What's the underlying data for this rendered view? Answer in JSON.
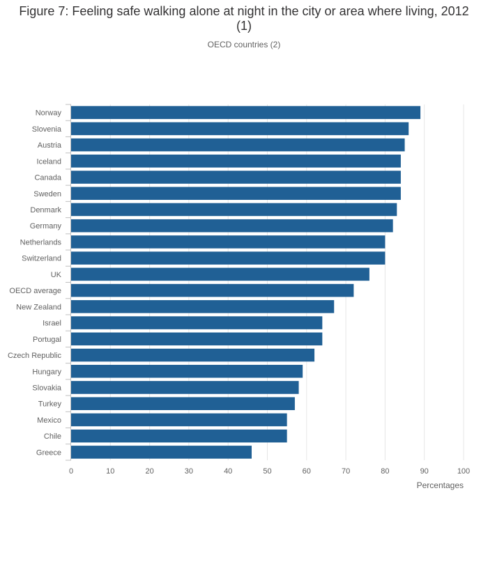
{
  "chart_data": {
    "type": "bar",
    "orientation": "horizontal",
    "title": "Figure 7: Feeling safe walking alone at night in the city or area where living, 2012 (1)",
    "subtitle": "OECD countries (2)",
    "xlabel": "Percentages",
    "ylabel": "",
    "xlim": [
      0,
      100
    ],
    "x_ticks": [
      0,
      10,
      20,
      30,
      40,
      50,
      60,
      70,
      80,
      90,
      100
    ],
    "grid": true,
    "bar_color": "#206095",
    "categories": [
      "Norway",
      "Slovenia",
      "Austria",
      "Iceland",
      "Canada",
      "Sweden",
      "Denmark",
      "Germany",
      "Netherlands",
      "Switzerland",
      "UK",
      "OECD average",
      "New Zealand",
      "Israel",
      "Portugal",
      "Czech Republic",
      "Hungary",
      "Slovakia",
      "Turkey",
      "Mexico",
      "Chile",
      "Greece"
    ],
    "values": [
      89,
      86,
      85,
      84,
      84,
      84,
      83,
      82,
      80,
      80,
      76,
      72,
      67,
      64,
      64,
      62,
      59,
      58,
      57,
      55,
      55,
      46
    ]
  }
}
